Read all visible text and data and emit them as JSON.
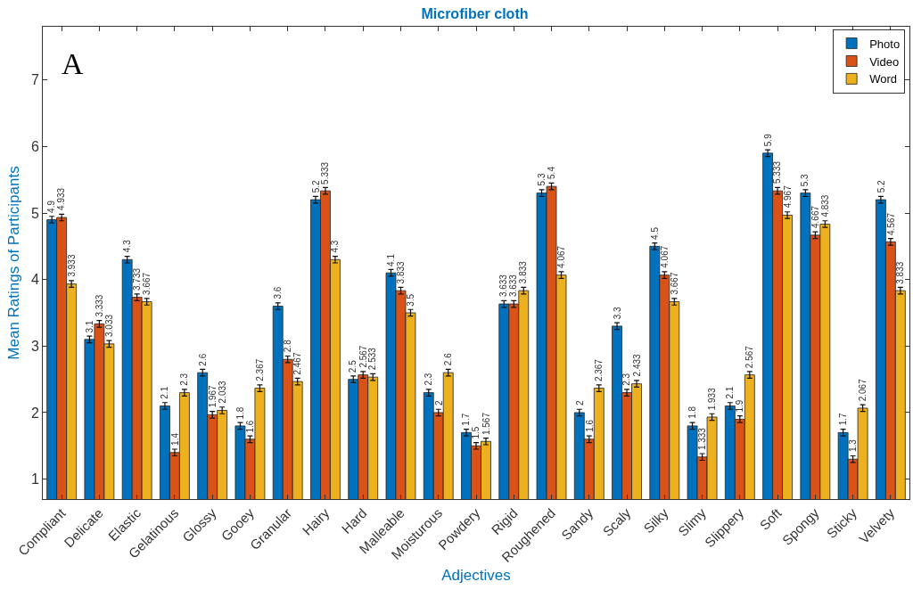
{
  "chart_data": {
    "type": "bar",
    "title": "Microfiber cloth",
    "xlabel": "Adjectives",
    "ylabel": "Mean Ratings of Participants",
    "annotations": [
      "A"
    ],
    "categories": [
      "Compliant",
      "Delicate",
      "Elastic",
      "Gelatinous",
      "Glossy",
      "Gooey",
      "Granular",
      "Hairy",
      "Hard",
      "Malleable",
      "Moisturous",
      "Powdery",
      "Rigid",
      "Roughened",
      "Sandy",
      "Scaly",
      "Silky",
      "Slimy",
      "Slippery",
      "Soft",
      "Spongy",
      "Sticky",
      "Velvety"
    ],
    "series": [
      {
        "name": "Photo",
        "color": "#0072bd",
        "values": [
          4.9,
          3.1,
          4.3,
          2.1,
          2.6,
          1.8,
          3.6,
          5.2,
          2.5,
          4.1,
          2.3,
          1.7,
          3.633,
          5.3,
          2,
          3.3,
          4.5,
          1.8,
          2.1,
          5.9,
          5.3,
          1.7,
          5.2
        ],
        "errors": [
          0.05,
          0.05,
          0.05,
          0.05,
          0.05,
          0.05,
          0.05,
          0.05,
          0.05,
          0.05,
          0.05,
          0.05,
          0.05,
          0.05,
          0.05,
          0.05,
          0.05,
          0.05,
          0.05,
          0.05,
          0.05,
          0.05,
          0.05
        ]
      },
      {
        "name": "Video",
        "color": "#d95319",
        "values": [
          4.933,
          3.333,
          3.733,
          1.4,
          1.967,
          1.6,
          2.8,
          5.333,
          2.567,
          3.833,
          2,
          1.5,
          3.633,
          5.4,
          1.6,
          2.3,
          4.067,
          1.333,
          1.9,
          5.333,
          4.667,
          1.3,
          4.567
        ],
        "errors": [
          0.05,
          0.05,
          0.05,
          0.05,
          0.05,
          0.05,
          0.05,
          0.05,
          0.05,
          0.05,
          0.05,
          0.05,
          0.05,
          0.05,
          0.05,
          0.05,
          0.05,
          0.05,
          0.05,
          0.05,
          0.05,
          0.05,
          0.05
        ]
      },
      {
        "name": "Word",
        "color": "#edb120",
        "values": [
          3.933,
          3.033,
          3.667,
          2.3,
          2.033,
          2.367,
          2.467,
          4.3,
          2.533,
          3.5,
          2.6,
          1.567,
          3.833,
          4.067,
          2.367,
          2.433,
          3.667,
          1.933,
          2.567,
          4.967,
          4.833,
          2.067,
          3.833
        ],
        "errors": [
          0.05,
          0.05,
          0.05,
          0.05,
          0.05,
          0.05,
          0.05,
          0.05,
          0.05,
          0.05,
          0.05,
          0.05,
          0.05,
          0.05,
          0.05,
          0.05,
          0.05,
          0.05,
          0.05,
          0.05,
          0.05,
          0.05,
          0.05
        ]
      }
    ],
    "ylim": [
      0.7,
      7.8
    ],
    "yticks": [
      1,
      2,
      3,
      4,
      5,
      6,
      7
    ],
    "grid": false,
    "legend": "top right",
    "data_labels": true
  }
}
